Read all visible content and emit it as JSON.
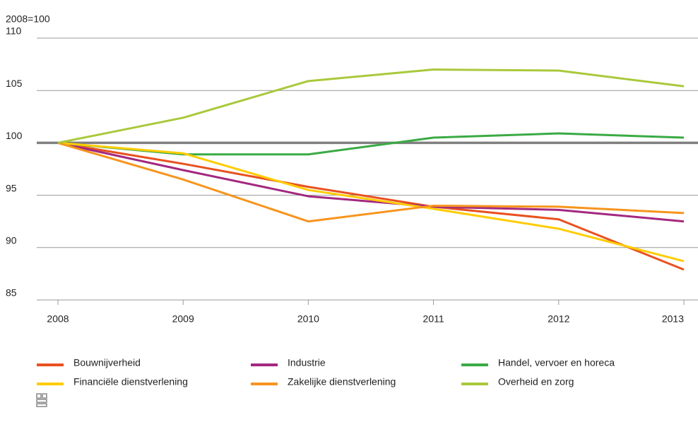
{
  "chart_data": {
    "type": "line",
    "y_label": "2008=100",
    "x": [
      "2008",
      "2009",
      "2010",
      "2011",
      "2012",
      "2013"
    ],
    "ylim": [
      85,
      110
    ],
    "yticks": [
      85,
      90,
      95,
      100,
      105,
      110
    ],
    "grid": true,
    "reference_line": 100,
    "legend": "bottom",
    "series": [
      {
        "name": "Bouwnijverheid",
        "color": "#e9511f",
        "values": [
          100,
          98.0,
          95.8,
          93.9,
          92.7,
          87.9
        ]
      },
      {
        "name": "Industrie",
        "color": "#a3287f",
        "values": [
          100,
          97.4,
          94.9,
          93.9,
          93.6,
          92.5
        ]
      },
      {
        "name": "Handel, vervoer en horeca",
        "color": "#3aaa44",
        "values": [
          100,
          98.9,
          98.9,
          100.5,
          100.9,
          100.5
        ]
      },
      {
        "name": "Financiële dienstverlening",
        "color": "#ffcc00",
        "values": [
          100,
          99.0,
          95.5,
          93.7,
          91.8,
          88.7
        ]
      },
      {
        "name": "Zakelijke dienstverlening",
        "color": "#f7941d",
        "values": [
          100,
          96.5,
          92.5,
          94.0,
          93.9,
          93.3
        ]
      },
      {
        "name": "Overheid en zorg",
        "color": "#a9c93b",
        "values": [
          100,
          102.4,
          105.9,
          107.0,
          106.9,
          105.4
        ]
      }
    ]
  }
}
